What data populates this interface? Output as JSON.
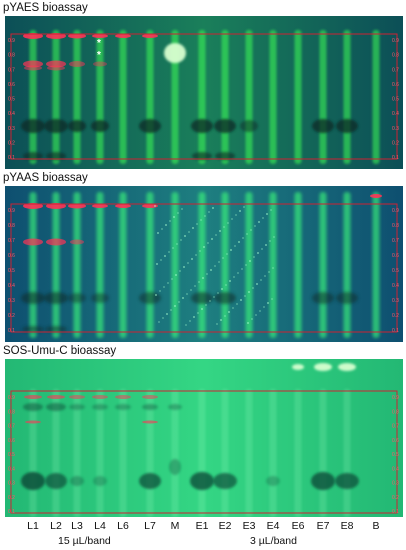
{
  "panels": [
    {
      "id": "pyaes",
      "title": "pYAES bioassay",
      "background": "#0d6a5e",
      "star_marks": [
        "*",
        "*"
      ],
      "y_ticks": [
        "0.9",
        "0.8",
        "0.7",
        "0.6",
        "0.5",
        "0.4",
        "0.3",
        "0.2",
        "0.1"
      ]
    },
    {
      "id": "pyaas",
      "title": "pYAAS bioassay",
      "background": "#0f6a78",
      "y_ticks": [
        "0.9",
        "0.8",
        "0.7",
        "0.6",
        "0.5",
        "0.4",
        "0.3",
        "0.2",
        "0.1"
      ]
    },
    {
      "id": "sos",
      "title": "SOS-Umu-C bioassay",
      "background": "#2fbf7a",
      "y_ticks": [
        "0.9",
        "0.8",
        "0.7",
        "0.6",
        "0.5",
        "0.4",
        "0.3",
        "0.2",
        "0.1"
      ]
    }
  ],
  "lanes": [
    "L1",
    "L2",
    "L3",
    "L4",
    "L6",
    "L7",
    "M",
    "E1",
    "E2",
    "E3",
    "E4",
    "E6",
    "E7",
    "E8",
    "B"
  ],
  "volume_labels": {
    "left": "15 µL/band",
    "right": "3 µL/band"
  },
  "colors": {
    "fluor_band": "#39ff6a",
    "dark_zone": "#0a2a25",
    "red_zone": "#ff3355",
    "frame": "#cc2233"
  }
}
